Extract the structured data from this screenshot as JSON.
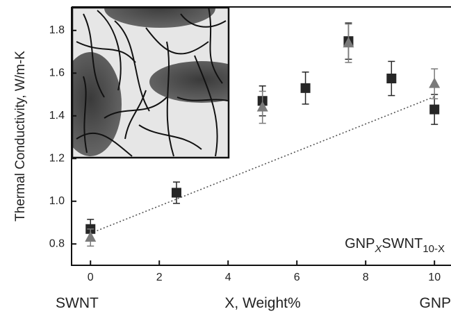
{
  "chart_data": {
    "type": "scatter",
    "ylabel": "Thermal Conductivity, W/m-K",
    "xlabel": "X, Weight%",
    "x_end_labels": [
      "SWNT",
      "GNP"
    ],
    "annotation": [
      "GNP",
      "X",
      "SWNT",
      "10-X"
    ],
    "xlim": [
      -0.55,
      10.4
    ],
    "ylim": [
      0.7,
      1.91
    ],
    "xticks": [
      0,
      2,
      4,
      6,
      8,
      10
    ],
    "yticks": [
      0.8,
      {
        "value": 1,
        "label": "1.0"
      },
      1.2,
      1.4,
      1.6,
      1.8
    ],
    "series": [
      {
        "marker": "square",
        "color": "#262626",
        "x": [
          0,
          2.5,
          5,
          6.25,
          7.5,
          8.75,
          10
        ],
        "values": [
          0.87,
          1.04,
          1.47,
          1.53,
          1.75,
          1.575,
          1.43
        ],
        "errors": [
          0.045,
          0.05,
          0.07,
          0.075,
          0.085,
          0.08,
          0.07
        ]
      },
      {
        "marker": "triangle",
        "color": "#7a7a7a",
        "x": [
          0,
          5,
          7.5,
          10
        ],
        "values": [
          0.83,
          1.44,
          1.74,
          1.55
        ],
        "errors": [
          0.04,
          0.075,
          0.09,
          0.07
        ]
      }
    ],
    "trend": {
      "color": "#555555",
      "x": [
        0,
        10
      ],
      "values": [
        0.85,
        1.49
      ]
    }
  }
}
